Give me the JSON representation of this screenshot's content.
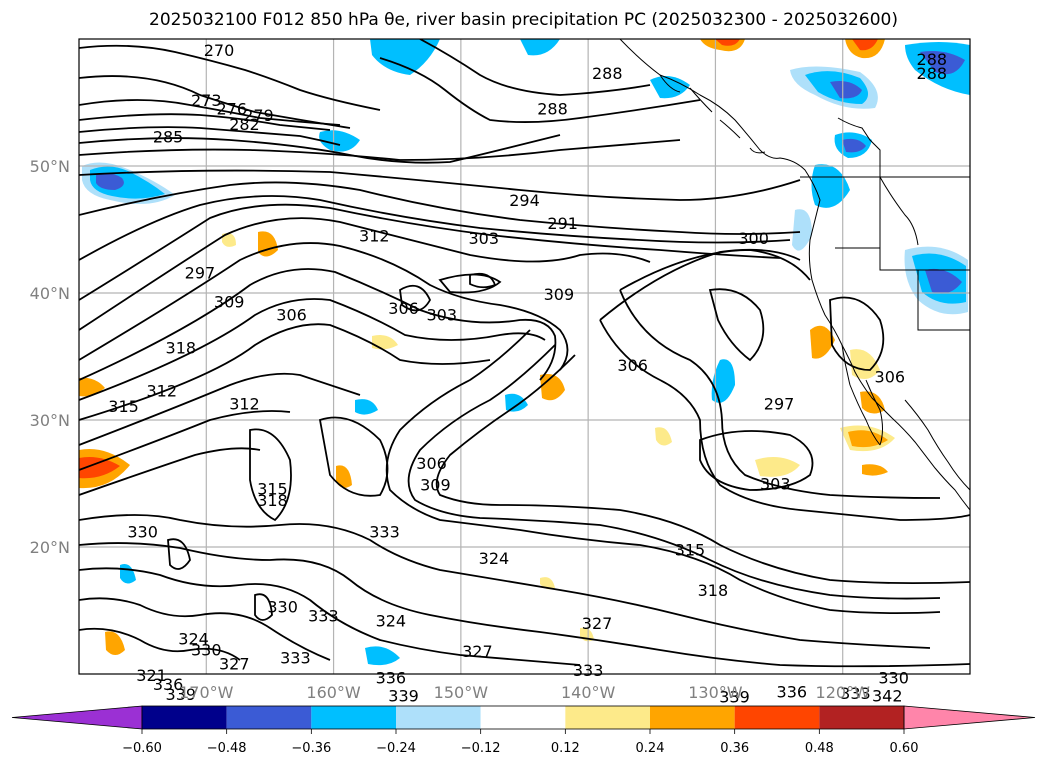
{
  "title": "2025032100 F012 850 hPa θe, river basin precipitation PC (2025032300 - 2025032600)",
  "map": {
    "lat_labels": [
      "50°N",
      "40°N",
      "30°N",
      "20°N"
    ],
    "lon_labels": [
      "170°W",
      "160°W",
      "150°W",
      "140°W",
      "130°W",
      "120°W"
    ],
    "contour_labels": [
      {
        "text": "270",
        "lon": -169.0,
        "lat": 58.8
      },
      {
        "text": "273",
        "lon": -170.0,
        "lat": 54.9
      },
      {
        "text": "276",
        "lon": -168.0,
        "lat": 54.2
      },
      {
        "text": "279",
        "lon": -165.9,
        "lat": 53.7
      },
      {
        "text": "282",
        "lon": -167.0,
        "lat": 53.0
      },
      {
        "text": "285",
        "lon": -173.0,
        "lat": 52.0
      },
      {
        "text": "288",
        "lon": -138.5,
        "lat": 57.0
      },
      {
        "text": "288",
        "lon": -142.8,
        "lat": 54.2
      },
      {
        "text": "288",
        "lon": -113.0,
        "lat": 58.1
      },
      {
        "text": "288",
        "lon": -113.0,
        "lat": 57.0
      },
      {
        "text": "291",
        "lon": -142.0,
        "lat": 45.2
      },
      {
        "text": "294",
        "lon": -145.0,
        "lat": 47.0
      },
      {
        "text": "297",
        "lon": -170.5,
        "lat": 41.3
      },
      {
        "text": "297",
        "lon": -125.0,
        "lat": 31.0
      },
      {
        "text": "300",
        "lon": -127.0,
        "lat": 44.0
      },
      {
        "text": "303",
        "lon": -148.2,
        "lat": 44.0
      },
      {
        "text": "303",
        "lon": -151.5,
        "lat": 38.0
      },
      {
        "text": "303",
        "lon": -125.3,
        "lat": 24.7
      },
      {
        "text": "306",
        "lon": -163.3,
        "lat": 38.0
      },
      {
        "text": "306",
        "lon": -154.5,
        "lat": 38.5
      },
      {
        "text": "306",
        "lon": -136.5,
        "lat": 34.0
      },
      {
        "text": "306",
        "lon": -116.3,
        "lat": 33.1
      },
      {
        "text": "306",
        "lon": -152.3,
        "lat": 26.3
      },
      {
        "text": "309",
        "lon": -168.2,
        "lat": 39.0
      },
      {
        "text": "309",
        "lon": -142.3,
        "lat": 39.6
      },
      {
        "text": "309",
        "lon": -152.0,
        "lat": 24.6
      },
      {
        "text": "312",
        "lon": -156.8,
        "lat": 44.2
      },
      {
        "text": "312",
        "lon": -173.5,
        "lat": 32.0
      },
      {
        "text": "312",
        "lon": -167.0,
        "lat": 31.0
      },
      {
        "text": "315",
        "lon": -176.5,
        "lat": 30.8
      },
      {
        "text": "315",
        "lon": -164.8,
        "lat": 24.3
      },
      {
        "text": "315",
        "lon": -132.0,
        "lat": 19.5
      },
      {
        "text": "318",
        "lon": -172.0,
        "lat": 35.4
      },
      {
        "text": "318",
        "lon": -164.8,
        "lat": 23.4
      },
      {
        "text": "318",
        "lon": -130.2,
        "lat": 16.3
      },
      {
        "text": "321",
        "lon": -174.3,
        "lat": 9.6
      },
      {
        "text": "324",
        "lon": -147.4,
        "lat": 18.8
      },
      {
        "text": "324",
        "lon": -171.0,
        "lat": 12.5
      },
      {
        "text": "324",
        "lon": -155.5,
        "lat": 13.9
      },
      {
        "text": "327",
        "lon": -139.3,
        "lat": 13.7
      },
      {
        "text": "327",
        "lon": -148.7,
        "lat": 11.5
      },
      {
        "text": "327",
        "lon": -167.8,
        "lat": 10.5
      },
      {
        "text": "330",
        "lon": -175.0,
        "lat": 20.9
      },
      {
        "text": "330",
        "lon": -164.0,
        "lat": 15.0
      },
      {
        "text": "330",
        "lon": -116.0,
        "lat": 9.4
      },
      {
        "text": "330",
        "lon": -170.0,
        "lat": 11.6
      },
      {
        "text": "333",
        "lon": -156.0,
        "lat": 20.9
      },
      {
        "text": "333",
        "lon": -160.8,
        "lat": 14.3
      },
      {
        "text": "333",
        "lon": -163.0,
        "lat": 11.0
      },
      {
        "text": "333",
        "lon": -140.0,
        "lat": 10.0
      },
      {
        "text": "333",
        "lon": -119.0,
        "lat": 8.2
      },
      {
        "text": "336",
        "lon": -173.0,
        "lat": 8.9
      },
      {
        "text": "336",
        "lon": -155.5,
        "lat": 9.4
      },
      {
        "text": "336",
        "lon": -124.0,
        "lat": 8.3
      },
      {
        "text": "339",
        "lon": -172.0,
        "lat": 8.1
      },
      {
        "text": "339",
        "lon": -154.5,
        "lat": 8.0
      },
      {
        "text": "339",
        "lon": -128.5,
        "lat": 7.9
      },
      {
        "text": "342",
        "lon": -116.5,
        "lat": 8.0
      }
    ]
  },
  "colorbar": {
    "ticks": [
      "−0.60",
      "−0.48",
      "−0.36",
      "−0.24",
      "−0.12",
      "0.12",
      "0.24",
      "0.36",
      "0.48",
      "0.60"
    ],
    "colors": [
      "#9b30d4",
      "#00008b",
      "#3b5bd5",
      "#00bfff",
      "#aee0fa",
      "#ffffff",
      "#fdea8a",
      "#ffa500",
      "#ff4500",
      "#b22222",
      "#ff85aa"
    ]
  }
}
